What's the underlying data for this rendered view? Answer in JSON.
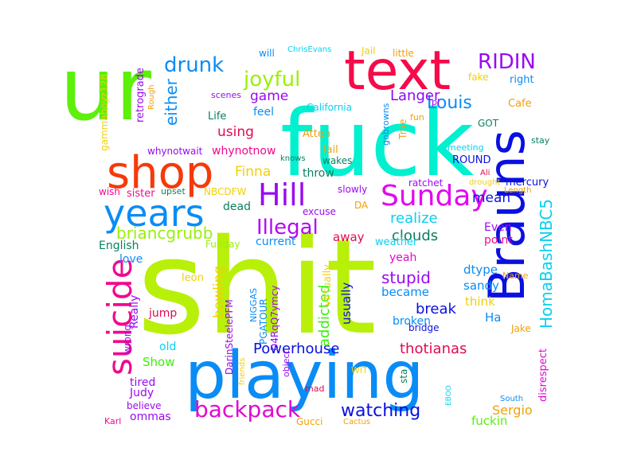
{
  "words": [
    {
      "text": "shit",
      "color": "#b8f00a"
    },
    {
      "text": "fuck",
      "color": "#00f0d0"
    },
    {
      "text": "playing",
      "color": "#0a8cf5"
    },
    {
      "text": "ur",
      "color": "#5cf00a"
    },
    {
      "text": "text",
      "color": "#f50a4a"
    },
    {
      "text": "Brauns",
      "color": "#0a10e0"
    },
    {
      "text": "shop",
      "color": "#f53a0a"
    },
    {
      "text": "years",
      "color": "#0a8cf5"
    },
    {
      "text": "suicide",
      "color": "#f00a90"
    },
    {
      "text": "Sunday",
      "color": "#e00af0"
    },
    {
      "text": "Hill",
      "color": "#9a0af0"
    },
    {
      "text": "backpack",
      "color": "#e00ad0"
    },
    {
      "text": "joyful",
      "color": "#9af00a"
    },
    {
      "text": "drunk",
      "color": "#0a8cf5"
    },
    {
      "text": "RIDIN",
      "color": "#9a0af0"
    },
    {
      "text": "Illegal",
      "color": "#b00af0"
    },
    {
      "text": "Louis",
      "color": "#0a8cf5"
    },
    {
      "text": "HomaBashNBC5",
      "color": "#0ad0f0"
    },
    {
      "text": "briancgrubb",
      "color": "#9af00a"
    },
    {
      "text": "watching",
      "color": "#0a10e0"
    },
    {
      "text": "Powerhouse",
      "color": "#0a10e0"
    },
    {
      "text": "thotianas",
      "color": "#e00a50"
    },
    {
      "text": "realize",
      "color": "#0ad0f0"
    },
    {
      "text": "clouds",
      "color": "#0a8060"
    },
    {
      "text": "stupid",
      "color": "#9a0af0"
    },
    {
      "text": "addicted",
      "color": "#3af00a"
    },
    {
      "text": "bowling",
      "color": "#f0d00a"
    },
    {
      "text": "break",
      "color": "#0a10e0"
    },
    {
      "text": "Langer",
      "color": "#8a0af0"
    },
    {
      "text": "game",
      "color": "#9a0af0"
    },
    {
      "text": "either",
      "color": "#0a8cf5"
    },
    {
      "text": "using",
      "color": "#e00a50"
    },
    {
      "text": "Finna",
      "color": "#f0d00a"
    },
    {
      "text": "mean",
      "color": "#0a10e0"
    },
    {
      "text": "Sergio",
      "color": "#f0a00a"
    },
    {
      "text": "fuckin",
      "color": "#5cf00a"
    },
    {
      "text": "Show",
      "color": "#3af00a"
    },
    {
      "text": "Judy",
      "color": "#9a0af0"
    },
    {
      "text": "tired",
      "color": "#9a0af0"
    },
    {
      "text": "ommas",
      "color": "#9a0af0"
    },
    {
      "text": "believe",
      "color": "#9a0af0"
    },
    {
      "text": "Karl",
      "color": "#f00a90"
    },
    {
      "text": "Gucci",
      "color": "#f0a00a"
    },
    {
      "text": "Cactus",
      "color": "#f0a00a"
    },
    {
      "text": "jump",
      "color": "#e00a50"
    },
    {
      "text": "old",
      "color": "#0ad0f0"
    },
    {
      "text": "Really",
      "color": "#9a0af0"
    },
    {
      "text": "wrong",
      "color": "#9a0af0"
    },
    {
      "text": "love",
      "color": "#0a8cf5"
    },
    {
      "text": "English",
      "color": "#0a8060"
    },
    {
      "text": "sister",
      "color": "#f00a90"
    },
    {
      "text": "wish",
      "color": "#f00a90"
    },
    {
      "text": "upset",
      "color": "#0a8060"
    },
    {
      "text": "NBCDFW",
      "color": "#f0d00a"
    },
    {
      "text": "dead",
      "color": "#0a8060"
    },
    {
      "text": "Funday",
      "color": "#9af00a"
    },
    {
      "text": "leon",
      "color": "#f0d00a"
    },
    {
      "text": "current",
      "color": "#0a8cf5"
    },
    {
      "text": "away",
      "color": "#e00a50"
    },
    {
      "text": "weather",
      "color": "#0ad0f0"
    },
    {
      "text": "DA",
      "color": "#f0a00a"
    },
    {
      "text": "excuse",
      "color": "#9a0af0"
    },
    {
      "text": "slowly",
      "color": "#9a0af0"
    },
    {
      "text": "ratchet",
      "color": "#9a0af0"
    },
    {
      "text": "Even",
      "color": "#9a0af0"
    },
    {
      "text": "point",
      "color": "#f00a90"
    },
    {
      "text": "yeah",
      "color": "#e00ad0"
    },
    {
      "text": "dtype",
      "color": "#0a8cf5"
    },
    {
      "text": "sandy",
      "color": "#0a8cf5"
    },
    {
      "text": "think",
      "color": "#f0d00a"
    },
    {
      "text": "became",
      "color": "#0a8cf5"
    },
    {
      "text": "usually",
      "color": "#0a10e0"
    },
    {
      "text": "virtually",
      "color": "#f0d00a"
    },
    {
      "text": "broken",
      "color": "#0a8cf5"
    },
    {
      "text": "bridge",
      "color": "#0a10e0"
    },
    {
      "text": "Ha",
      "color": "#0a8cf5"
    },
    {
      "text": "Name",
      "color": "#f0a00a"
    },
    {
      "text": "Jake",
      "color": "#f0a00a"
    },
    {
      "text": "disrespect",
      "color": "#e00ad0"
    },
    {
      "text": "South",
      "color": "#0a8cf5"
    },
    {
      "text": "EBOO",
      "color": "#0ad0f0"
    },
    {
      "text": "sta",
      "color": "#0a8060"
    },
    {
      "text": "mad",
      "color": "#e00a50"
    },
    {
      "text": "WIT",
      "color": "#f0d00a"
    },
    {
      "text": "NIGGAS",
      "color": "#0a8cf5"
    },
    {
      "text": "PGATOUR",
      "color": "#0a8cf5"
    },
    {
      "text": "D4RqQ7ymcy",
      "color": "#9a0af0"
    },
    {
      "text": "DarinSteelePFM",
      "color": "#9a0af0"
    },
    {
      "text": "object",
      "color": "#9a0af0"
    },
    {
      "text": "friends",
      "color": "#f0d00a"
    },
    {
      "text": "gammaboyz128",
      "color": "#f0d00a"
    },
    {
      "text": "retrograde",
      "color": "#9a0af0"
    },
    {
      "text": "Rough",
      "color": "#f0a00a"
    },
    {
      "text": "will",
      "color": "#0a8cf5"
    },
    {
      "text": "ChrisEvans",
      "color": "#0ad0f0"
    },
    {
      "text": "Jail",
      "color": "#f0d00a"
    },
    {
      "text": "little",
      "color": "#f0a00a"
    },
    {
      "text": "scenes",
      "color": "#9a0af0"
    },
    {
      "text": "Life",
      "color": "#0a8060"
    },
    {
      "text": "feel",
      "color": "#0a8cf5"
    },
    {
      "text": "California",
      "color": "#0ad0f0"
    },
    {
      "text": "pl",
      "color": "#9a0af0"
    },
    {
      "text": "fun",
      "color": "#f0a00a"
    },
    {
      "text": "Cafe",
      "color": "#f0a00a"
    },
    {
      "text": "right",
      "color": "#0a8cf5"
    },
    {
      "text": "fake",
      "color": "#f0d00a"
    },
    {
      "text": "Atten",
      "color": "#f0a00a"
    },
    {
      "text": "knows",
      "color": "#0a8060"
    },
    {
      "text": "fail",
      "color": "#f0a00a"
    },
    {
      "text": "wakes",
      "color": "#0a8060"
    },
    {
      "text": "throw",
      "color": "#0a8060"
    },
    {
      "text": "True",
      "color": "#f0a00a"
    },
    {
      "text": "ROUND",
      "color": "#0a10e0"
    },
    {
      "text": "GOT",
      "color": "#0a8060"
    },
    {
      "text": "meeting",
      "color": "#0ad0f0"
    },
    {
      "text": "gobrowns",
      "color": "#0a8cf5"
    },
    {
      "text": "stay",
      "color": "#0a8060"
    },
    {
      "text": "Ali",
      "color": "#e00a50"
    },
    {
      "text": "drought",
      "color": "#f0d00a"
    },
    {
      "text": "Length",
      "color": "#f0a00a"
    },
    {
      "text": "mercury",
      "color": "#0a10e0"
    },
    {
      "text": "whynotwait",
      "color": "#9a0af0"
    },
    {
      "text": "whynotnow",
      "color": "#f00a90"
    }
  ]
}
